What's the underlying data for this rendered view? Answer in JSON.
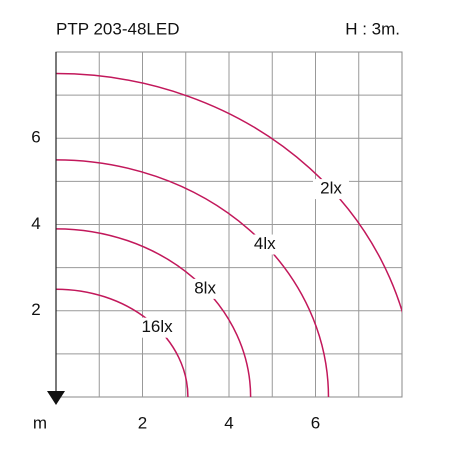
{
  "chart_data": {
    "type": "isolux",
    "title": "PTP 203-48LED",
    "subtitle": "H : 3m.",
    "x_label": "m",
    "xlim": [
      0,
      8
    ],
    "ylim": [
      0,
      8
    ],
    "xticks": [
      2,
      4,
      6
    ],
    "yticks": [
      2,
      4,
      6
    ],
    "xgrid": [
      1,
      2,
      3,
      4,
      5,
      6,
      7
    ],
    "ygrid": [
      1,
      2,
      3,
      4,
      5,
      6,
      7
    ],
    "grid": true,
    "color": "#c2185b",
    "series": [
      {
        "name": "2lx",
        "rx": 8.3,
        "ry": 7.5
      },
      {
        "name": "4lx",
        "rx": 6.3,
        "ry": 5.5
      },
      {
        "name": "8lx",
        "rx": 4.5,
        "ry": 3.9
      },
      {
        "name": "16lx",
        "rx": 3.05,
        "ry": 2.5
      }
    ]
  }
}
